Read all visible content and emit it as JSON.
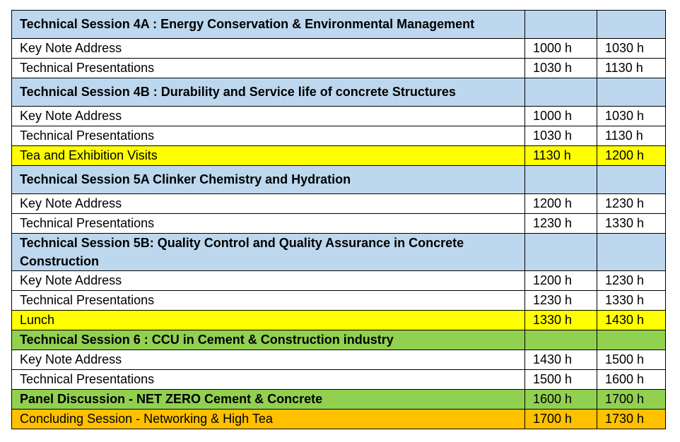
{
  "rows": [
    {
      "kind": "session",
      "title": "Technical Session 4A : Energy Conservation & Environmental Management",
      "start": "",
      "end": ""
    },
    {
      "kind": "row",
      "title": "Key Note Address",
      "start": "1000 h",
      "end": "1030 h"
    },
    {
      "kind": "row",
      "title": "Technical Presentations",
      "start": "1030 h",
      "end": "1130 h"
    },
    {
      "kind": "session",
      "title": "Technical Session 4B : Durability and Service life of concrete Structures",
      "start": "",
      "end": ""
    },
    {
      "kind": "row",
      "title": "Key Note Address",
      "start": "1000 h",
      "end": "1030 h"
    },
    {
      "kind": "row",
      "title": "Technical Presentations",
      "start": "1030 h",
      "end": "1130 h"
    },
    {
      "kind": "break",
      "title": "Tea and Exhibition Visits",
      "start": "1130 h",
      "end": "1200 h"
    },
    {
      "kind": "session",
      "title": "Technical Session 5A Clinker Chemistry and Hydration",
      "start": "",
      "end": ""
    },
    {
      "kind": "row",
      "title": "Key Note Address",
      "start": "1200 h",
      "end": "1230 h"
    },
    {
      "kind": "row",
      "title": "Technical Presentations",
      "start": "1230 h",
      "end": "1330 h"
    },
    {
      "kind": "session",
      "title": "Technical Session 5B: Quality Control and Quality Assurance in Concrete Construction",
      "start": "",
      "end": ""
    },
    {
      "kind": "row",
      "title": "Key Note Address",
      "start": "1200 h",
      "end": "1230 h"
    },
    {
      "kind": "row",
      "title": "Technical Presentations",
      "start": "1230 h",
      "end": "1330 h"
    },
    {
      "kind": "break",
      "title": "Lunch",
      "start": "1330 h",
      "end": "1430 h"
    },
    {
      "kind": "green",
      "title": "Technical Session 6 : CCU in Cement & Construction industry",
      "start": "",
      "end": ""
    },
    {
      "kind": "row",
      "title": "Key Note Address",
      "start": "1430 h",
      "end": "1500 h"
    },
    {
      "kind": "row",
      "title": "Technical Presentations",
      "start": "1500 h",
      "end": "1600 h"
    },
    {
      "kind": "green",
      "title": "Panel Discussion - NET ZERO Cement & Concrete",
      "start": "1600 h",
      "end": "1700 h"
    },
    {
      "kind": "orange",
      "title": "Concluding Session - Networking & High Tea",
      "start": "1700 h",
      "end": "1730 h"
    }
  ],
  "colors": {
    "session": "#bdd7ee",
    "break": "#ffff00",
    "green": "#92d050",
    "orange": "#ffc000"
  }
}
